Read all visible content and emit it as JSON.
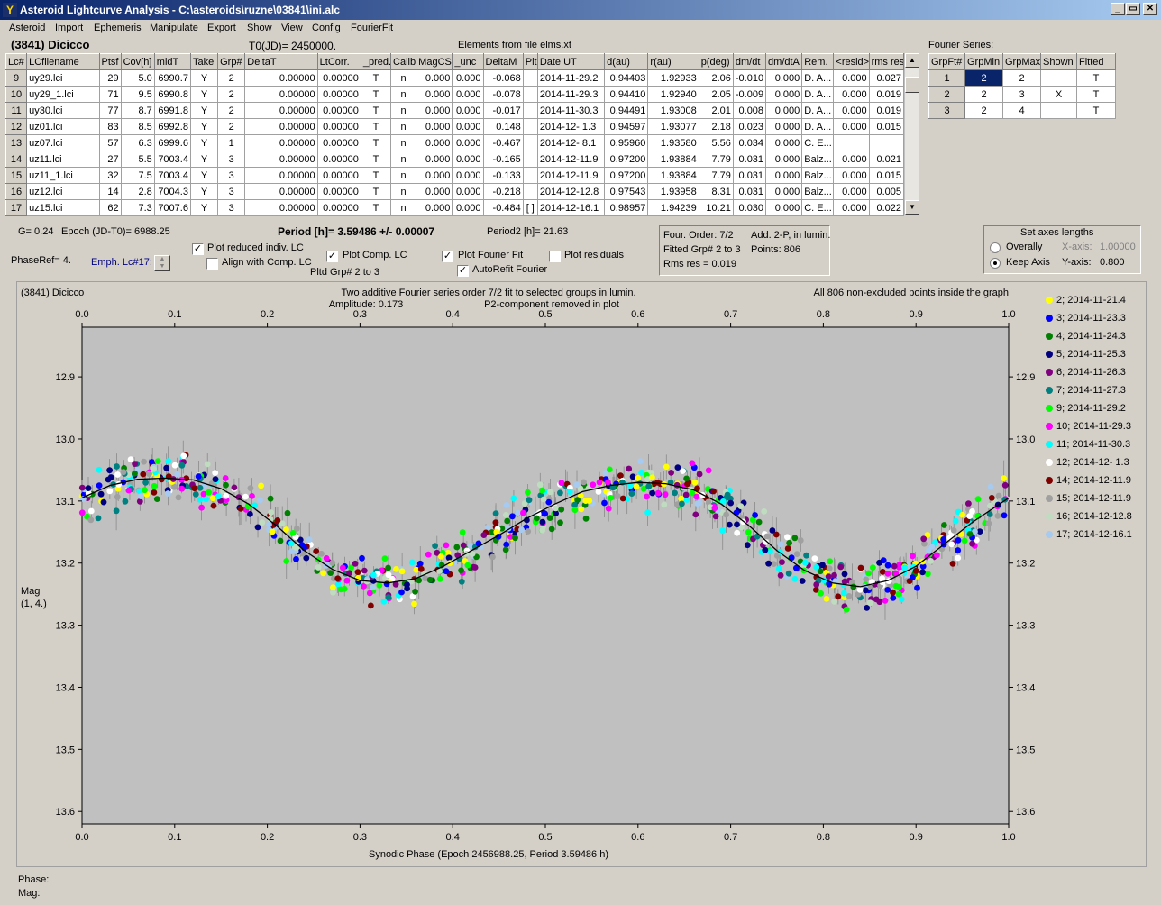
{
  "window": {
    "title": "Asteroid Lightcurve Analysis - C:\\asteroids\\ruzne\\03841\\ini.alc",
    "minimize": "_",
    "maximize": "▭",
    "close": "✕"
  },
  "menu": [
    "Asteroid",
    "Import",
    "Ephemeris",
    "Manipulate",
    "Export",
    "Show",
    "View",
    "Config",
    "FourierFit"
  ],
  "header": {
    "object": "(3841) Dicicco",
    "t0": "T0(JD)= 2450000.",
    "elements": "Elements from file elms.xt",
    "fourier_series": "Fourier Series:"
  },
  "lc_table": {
    "columns": [
      "Lc#",
      "LCfilename",
      "Ptsf",
      "Cov[h]",
      "midT",
      "Take",
      "Grp#",
      "DeltaT",
      "LtCorr.",
      "_pred.",
      "Calib.",
      "MagCS",
      "_unc",
      "DeltaM",
      "Plt",
      "Date UT",
      "d(au)",
      "r(au)",
      "p(deg)",
      "dm/dt",
      "dm/dtA",
      "Rem.",
      "<resid>",
      "rms res"
    ],
    "rows": [
      [
        "9",
        "uy29.lci",
        "29",
        "5.0",
        "6990.7",
        "Y",
        "2",
        "0.00000",
        "0.00000",
        "T",
        "n",
        "0.000",
        "0.000",
        "-0.068",
        "",
        "2014-11-29.2",
        "0.94403",
        "1.92933",
        "2.06",
        "-0.010",
        "0.000",
        "D. A...",
        "0.000",
        "0.027"
      ],
      [
        "10",
        "uy29_1.lci",
        "71",
        "9.5",
        "6990.8",
        "Y",
        "2",
        "0.00000",
        "0.00000",
        "T",
        "n",
        "0.000",
        "0.000",
        "-0.078",
        "",
        "2014-11-29.3",
        "0.94410",
        "1.92940",
        "2.05",
        "-0.009",
        "0.000",
        "D. A...",
        "0.000",
        "0.019"
      ],
      [
        "11",
        "uy30.lci",
        "77",
        "8.7",
        "6991.8",
        "Y",
        "2",
        "0.00000",
        "0.00000",
        "T",
        "n",
        "0.000",
        "0.000",
        "-0.017",
        "",
        "2014-11-30.3",
        "0.94491",
        "1.93008",
        "2.01",
        "0.008",
        "0.000",
        "D. A...",
        "0.000",
        "0.019"
      ],
      [
        "12",
        "uz01.lci",
        "83",
        "8.5",
        "6992.8",
        "Y",
        "2",
        "0.00000",
        "0.00000",
        "T",
        "n",
        "0.000",
        "0.000",
        "0.148",
        "",
        "2014-12- 1.3",
        "0.94597",
        "1.93077",
        "2.18",
        "0.023",
        "0.000",
        "D. A...",
        "0.000",
        "0.015"
      ],
      [
        "13",
        "uz07.lci",
        "57",
        "6.3",
        "6999.6",
        "Y",
        "1",
        "0.00000",
        "0.00000",
        "T",
        "n",
        "0.000",
        "0.000",
        "-0.467",
        "",
        "2014-12- 8.1",
        "0.95960",
        "1.93580",
        "5.56",
        "0.034",
        "0.000",
        "C. E...",
        "",
        ""
      ],
      [
        "14",
        "uz11.lci",
        "27",
        "5.5",
        "7003.4",
        "Y",
        "3",
        "0.00000",
        "0.00000",
        "T",
        "n",
        "0.000",
        "0.000",
        "-0.165",
        "",
        "2014-12-11.9",
        "0.97200",
        "1.93884",
        "7.79",
        "0.031",
        "0.000",
        "Balz...",
        "0.000",
        "0.021"
      ],
      [
        "15",
        "uz11_1.lci",
        "32",
        "7.5",
        "7003.4",
        "Y",
        "3",
        "0.00000",
        "0.00000",
        "T",
        "n",
        "0.000",
        "0.000",
        "-0.133",
        "",
        "2014-12-11.9",
        "0.97200",
        "1.93884",
        "7.79",
        "0.031",
        "0.000",
        "Balz...",
        "0.000",
        "0.015"
      ],
      [
        "16",
        "uz12.lci",
        "14",
        "2.8",
        "7004.3",
        "Y",
        "3",
        "0.00000",
        "0.00000",
        "T",
        "n",
        "0.000",
        "0.000",
        "-0.218",
        "",
        "2014-12-12.8",
        "0.97543",
        "1.93958",
        "8.31",
        "0.031",
        "0.000",
        "Balz...",
        "0.000",
        "0.005"
      ],
      [
        "17",
        "uz15.lci",
        "62",
        "7.3",
        "7007.6",
        "Y",
        "3",
        "0.00000",
        "0.00000",
        "T",
        "n",
        "0.000",
        "0.000",
        "-0.484",
        "[ ]",
        "2014-12-16.1",
        "0.98957",
        "1.94239",
        "10.21",
        "0.030",
        "0.000",
        "C. E...",
        "0.000",
        "0.022"
      ]
    ]
  },
  "fourier_table": {
    "columns": [
      "GrpFt#",
      "GrpMin",
      "GrpMax",
      "Shown",
      "Fitted"
    ],
    "rows": [
      [
        "1",
        "2",
        "2",
        "",
        "T"
      ],
      [
        "2",
        "2",
        "3",
        "X",
        "T"
      ],
      [
        "3",
        "2",
        "4",
        "",
        "T"
      ]
    ]
  },
  "controls": {
    "g": "G= 0.24",
    "epoch": "Epoch (JD-T0)= 6988.25",
    "period": "Period [h]= 3.59486 +/- 0.00007",
    "period2": "Period2 [h]= 21.63",
    "phaseref": "PhaseRef= 4.",
    "emph": "Emph. Lc#17:",
    "plot_reduced": "Plot reduced indiv. LC",
    "align_comp": "Align with Comp. LC",
    "plot_comp": "Plot Comp. LC",
    "pltd_grp": "Pltd Grp#  2   to   3",
    "plot_fourier": "Plot Fourier Fit",
    "autorefit": "AutoRefit Fourier",
    "plot_residuals": "Plot residuals",
    "check": "✓",
    "four_order": "Four. Order:  7/2",
    "add_2p": "Add. 2-P, in lumin.",
    "fitted_grp": "Fitted Grp# 2 to 3",
    "points": "Points: 806",
    "rms_res": "Rms res      = 0.019",
    "axes_title": "Set axes lengths",
    "overally": "Overally",
    "keep_axis": "Keep Axis",
    "xaxis_label": "X-axis:",
    "xaxis_value": "1.00000",
    "yaxis_label": "Y-axis:",
    "yaxis_value": "0.800"
  },
  "chart_data": {
    "type": "scatter",
    "title": "Two additive Fourier series order 7/2 fit to selected groups in lumin.",
    "subtitle_left": "(3841) Dicicco",
    "subtitle_right": "All 806 non-excluded points inside the graph",
    "amplitude": "Amplitude: 0.173",
    "p2_note": "P2-component removed in plot",
    "xlabel": "Synodic Phase (Epoch 2456988.25, Period 3.59486 h)",
    "ylabel": "Mag",
    "ylabel2": "(1, 4.)",
    "xlim": [
      0,
      1
    ],
    "ylim": [
      12.82,
      13.62
    ],
    "y_reversed": true,
    "x_ticks": [
      "0.0",
      "0.1",
      "0.2",
      "0.3",
      "0.4",
      "0.5",
      "0.6",
      "0.7",
      "0.8",
      "0.9",
      "1.0"
    ],
    "y_ticks": [
      "12.9",
      "13.0",
      "13.1",
      "13.2",
      "13.3",
      "13.4",
      "13.5",
      "13.6"
    ],
    "fit_curve": {
      "x": [
        0.0,
        0.03,
        0.06,
        0.09,
        0.12,
        0.15,
        0.18,
        0.21,
        0.24,
        0.27,
        0.3,
        0.33,
        0.36,
        0.39,
        0.42,
        0.45,
        0.48,
        0.51,
        0.54,
        0.57,
        0.6,
        0.63,
        0.66,
        0.69,
        0.72,
        0.75,
        0.78,
        0.81,
        0.84,
        0.87,
        0.9,
        0.93,
        0.96,
        1.0
      ],
      "y": [
        13.095,
        13.075,
        13.065,
        13.063,
        13.066,
        13.08,
        13.105,
        13.14,
        13.18,
        13.21,
        13.228,
        13.232,
        13.225,
        13.205,
        13.18,
        13.155,
        13.128,
        13.105,
        13.085,
        13.075,
        13.07,
        13.072,
        13.082,
        13.105,
        13.14,
        13.18,
        13.212,
        13.232,
        13.238,
        13.228,
        13.205,
        13.17,
        13.135,
        13.095
      ]
    },
    "series": [
      {
        "name": "2; 2014-11-21.4",
        "color": "#ffff00"
      },
      {
        "name": "3; 2014-11-23.3",
        "color": "#0000ff"
      },
      {
        "name": "4; 2014-11-24.3",
        "color": "#008000"
      },
      {
        "name": "5; 2014-11-25.3",
        "color": "#000080"
      },
      {
        "name": "6; 2014-11-26.3",
        "color": "#800080"
      },
      {
        "name": "7; 2014-11-27.3",
        "color": "#008080"
      },
      {
        "name": "9; 2014-11-29.2",
        "color": "#00ff00"
      },
      {
        "name": "10; 2014-11-29.3",
        "color": "#ff00ff"
      },
      {
        "name": "11; 2014-11-30.3",
        "color": "#00ffff"
      },
      {
        "name": "12; 2014-12- 1.3",
        "color": "#ffffff"
      },
      {
        "name": "14; 2014-12-11.9",
        "color": "#800000"
      },
      {
        "name": "15; 2014-12-11.9",
        "color": "#a0a0a0"
      },
      {
        "name": "16; 2014-12-12.8",
        "color": "#c0dcc0"
      },
      {
        "name": "17; 2014-12-16.1",
        "color": "#a6caf0"
      }
    ]
  },
  "status": {
    "phase": "Phase:",
    "mag": "Mag:"
  }
}
